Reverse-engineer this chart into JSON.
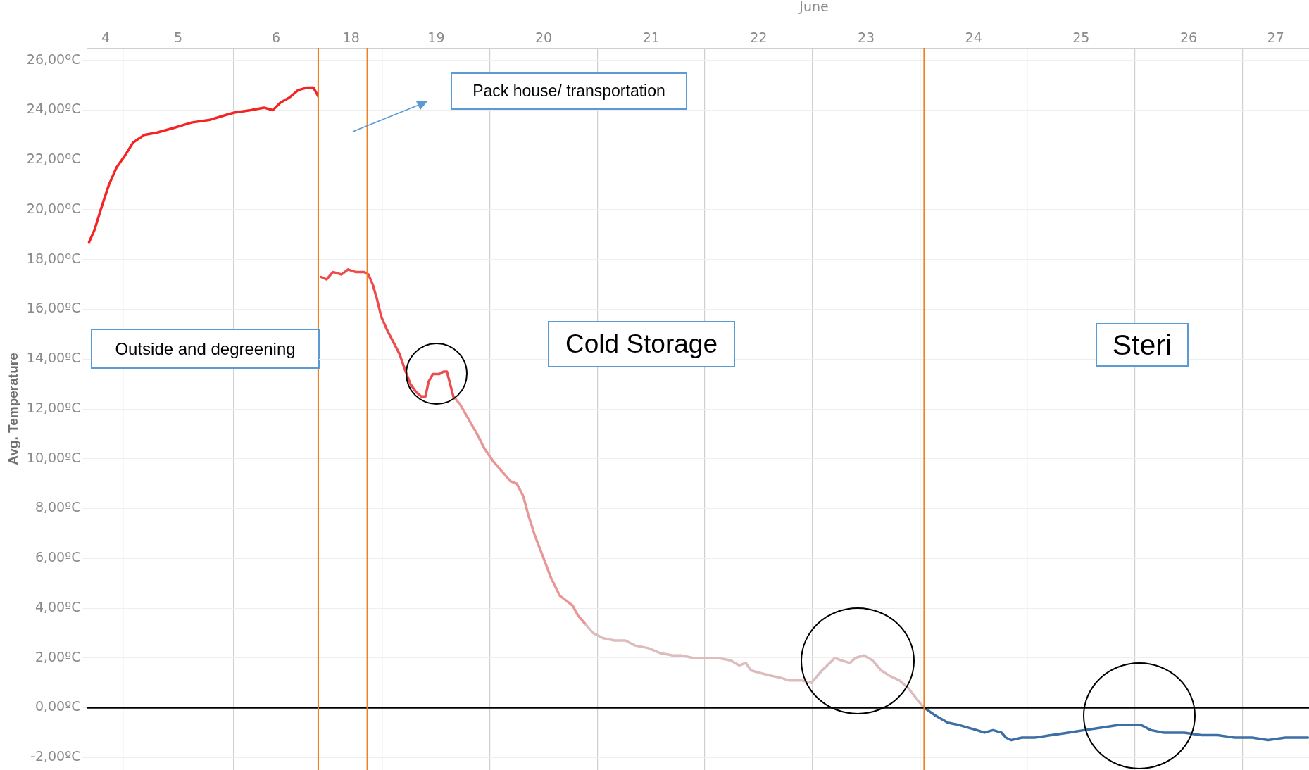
{
  "chart_data": [
    {
      "type": "line",
      "ylabel": "Avg. Temperature",
      "xlim": [
        4.17,
        6.28
      ],
      "xticks": [
        {
          "value": 4.34,
          "label": "4"
        },
        {
          "value": 4.5,
          "label": null
        },
        {
          "value": 5,
          "label": "5"
        },
        {
          "value": 5.5,
          "label": null
        },
        {
          "value": 5.89,
          "label": "6"
        }
      ],
      "ylim": [
        -2.5,
        26.5
      ],
      "yticks": [
        {
          "value": -2,
          "label": "-2,00ºC"
        },
        {
          "value": 0,
          "label": "0,00ºC"
        },
        {
          "value": 2,
          "label": "2,00ºC"
        },
        {
          "value": 4,
          "label": "4,00ºC"
        },
        {
          "value": 6,
          "label": "6,00ºC"
        },
        {
          "value": 8,
          "label": "8,00ºC"
        },
        {
          "value": 10,
          "label": "10,00ºC"
        },
        {
          "value": 12,
          "label": "12,00ºC"
        },
        {
          "value": 14,
          "label": "14,00ºC"
        },
        {
          "value": 16,
          "label": "16,00ºC"
        },
        {
          "value": 18,
          "label": "18,00ºC"
        },
        {
          "value": 20,
          "label": "20,00ºC"
        },
        {
          "value": 22,
          "label": "22,00ºC"
        },
        {
          "value": 24,
          "label": "24,00ºC"
        },
        {
          "value": 26,
          "label": "26,00ºC"
        }
      ],
      "grid": true,
      "legend": false,
      "series": [
        {
          "color": "#f52424",
          "x": [
            4.19,
            4.24,
            4.31,
            4.37,
            4.44,
            4.52,
            4.59,
            4.69,
            4.81,
            4.97,
            5.12,
            5.28,
            5.43,
            5.51,
            5.66,
            5.78,
            5.86,
            5.93,
            6.01,
            6.09,
            6.17,
            6.23,
            6.28
          ],
          "values": [
            18.7,
            19.2,
            20.2,
            21.0,
            21.7,
            22.2,
            22.7,
            23.0,
            23.1,
            23.3,
            23.5,
            23.6,
            23.8,
            23.9,
            24.0,
            24.1,
            24.0,
            24.3,
            24.5,
            24.8,
            24.9,
            24.9,
            24.5
          ]
        }
      ],
      "ref_lines": [
        {
          "axis": "y",
          "value": 0,
          "color": "#000000"
        },
        {
          "axis": "x",
          "value": 6.28,
          "color": "#f07f20"
        }
      ],
      "annotations": [
        "Outside and degreening"
      ]
    },
    {
      "type": "line",
      "xlabel": "June",
      "tick_labels": "x",
      "xlim": [
        17.91,
        27.12
      ],
      "xticks": [
        {
          "value": 18.21,
          "label": "18"
        },
        {
          "value": 18.5,
          "label": null
        },
        {
          "value": 19,
          "label": "19"
        },
        {
          "value": 19.5,
          "label": null
        },
        {
          "value": 20,
          "label": "20"
        },
        {
          "value": 20.5,
          "label": null
        },
        {
          "value": 21,
          "label": "21"
        },
        {
          "value": 21.5,
          "label": null
        },
        {
          "value": 22,
          "label": "22"
        },
        {
          "value": 22.5,
          "label": null
        },
        {
          "value": 23,
          "label": "23"
        },
        {
          "value": 23.5,
          "label": null
        },
        {
          "value": 24,
          "label": "24"
        },
        {
          "value": 24.5,
          "label": null
        },
        {
          "value": 25,
          "label": "25"
        },
        {
          "value": 25.5,
          "label": null
        },
        {
          "value": 26,
          "label": "26"
        },
        {
          "value": 26.5,
          "label": null
        },
        {
          "value": 26.81,
          "label": "27"
        }
      ],
      "ylim": [
        -2.5,
        26.5
      ],
      "yticks": [
        -2,
        0,
        2,
        4,
        6,
        8,
        10,
        12,
        14,
        16,
        18,
        20,
        22,
        24,
        26
      ],
      "grid": true,
      "legend": false,
      "series": [
        {
          "color": "#ee4c4c",
          "x": [
            17.93,
            17.98,
            18.04,
            18.12,
            18.18,
            18.25,
            18.33,
            18.37,
            18.41,
            18.45,
            18.49,
            18.54,
            18.6,
            18.66,
            18.7,
            18.76,
            18.81,
            18.86,
            18.9,
            18.93,
            18.97,
            19.03,
            19.07,
            19.1,
            19.16
          ],
          "values": [
            17.3,
            17.2,
            17.5,
            17.4,
            17.6,
            17.5,
            17.5,
            17.4,
            17.0,
            16.4,
            15.7,
            15.2,
            14.7,
            14.2,
            13.7,
            13.0,
            12.7,
            12.5,
            12.5,
            13.1,
            13.4,
            13.4,
            13.5,
            13.5,
            12.5
          ]
        },
        {
          "color": "#e89696",
          "x": [
            19.16,
            19.22,
            19.3,
            19.38,
            19.45,
            19.53,
            19.61,
            19.69,
            19.75,
            19.81,
            19.86,
            19.92,
            20.0,
            20.07,
            20.15,
            20.21,
            20.27,
            20.32,
            20.38
          ],
          "values": [
            12.5,
            12.2,
            11.6,
            11.0,
            10.4,
            9.9,
            9.5,
            9.1,
            9.0,
            8.5,
            7.7,
            6.9,
            6.0,
            5.2,
            4.5,
            4.3,
            4.1,
            3.7,
            3.4
          ]
        },
        {
          "color": "#dcbcbc",
          "x": [
            20.38,
            20.46,
            20.55,
            20.66,
            20.76,
            20.85,
            20.97,
            21.08,
            21.2,
            21.28,
            21.39,
            21.51,
            21.62,
            21.74,
            21.82,
            21.88,
            21.93,
            22.01,
            22.1,
            22.21,
            22.28,
            22.4,
            22.49,
            22.59,
            22.71,
            22.77,
            22.85,
            22.9,
            22.98,
            23.06,
            23.14,
            23.21,
            23.31,
            23.39,
            23.48,
            23.54
          ],
          "values": [
            3.4,
            3.0,
            2.8,
            2.7,
            2.7,
            2.5,
            2.4,
            2.2,
            2.1,
            2.1,
            2.0,
            2.0,
            2.0,
            1.9,
            1.7,
            1.8,
            1.5,
            1.4,
            1.3,
            1.2,
            1.1,
            1.1,
            1.0,
            1.5,
            2.0,
            1.9,
            1.8,
            2.0,
            2.1,
            1.9,
            1.5,
            1.3,
            1.1,
            0.8,
            0.3,
            0.0
          ]
        },
        {
          "color": "#3c6fa6",
          "x": [
            23.54,
            23.64,
            23.76,
            23.87,
            24.03,
            24.1,
            24.18,
            24.26,
            24.3,
            24.35,
            24.45,
            24.57,
            24.72,
            24.88,
            25.03,
            25.19,
            25.34,
            25.5,
            25.56,
            25.65,
            25.77,
            25.96,
            26.12,
            26.27,
            26.43,
            26.59,
            26.74,
            26.9,
            27.11
          ],
          "values": [
            0.0,
            -0.3,
            -0.6,
            -0.7,
            -0.9,
            -1.0,
            -0.9,
            -1.0,
            -1.2,
            -1.3,
            -1.2,
            -1.2,
            -1.1,
            -1.0,
            -0.9,
            -0.8,
            -0.7,
            -0.7,
            -0.7,
            -0.9,
            -1.0,
            -1.0,
            -1.1,
            -1.1,
            -1.2,
            -1.2,
            -1.3,
            -1.2,
            -1.2
          ]
        }
      ],
      "ref_lines": [
        {
          "axis": "y",
          "value": 0,
          "color": "#000000"
        },
        {
          "axis": "x",
          "value": 18.36,
          "color": "#f07f20"
        },
        {
          "axis": "x",
          "value": 23.54,
          "color": "#f07f20"
        }
      ],
      "annotations": [
        "Pack house/ transportation",
        "Cold Storage",
        "Steri"
      ]
    }
  ]
}
